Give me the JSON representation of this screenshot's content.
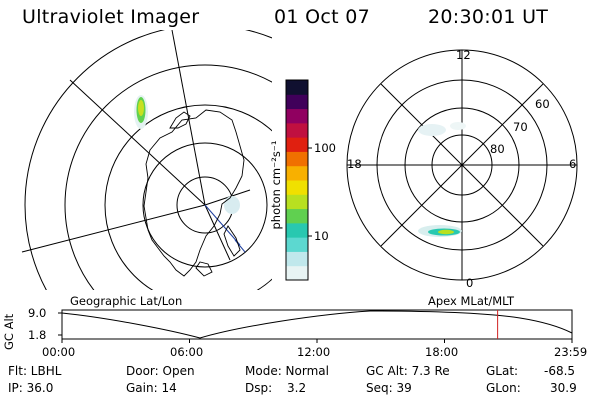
{
  "header": {
    "title": "Ultraviolet Imager",
    "date": "01 Oct 07",
    "time": "20:30:01 UT"
  },
  "colorbar": {
    "unit_label": "photon cm⁻²s⁻¹",
    "tick_labels": [
      "100",
      "10"
    ],
    "colors": [
      "#e8f4f4",
      "#c0e8ec",
      "#5cd8d0",
      "#28c8b0",
      "#60d050",
      "#b8e020",
      "#f0e000",
      "#f8b000",
      "#f07000",
      "#e02010",
      "#c01040",
      "#900060",
      "#40005a",
      "#101030"
    ]
  },
  "polar_labels": {
    "mlt": [
      "12",
      "18",
      "6",
      "0"
    ],
    "mlat": [
      "60",
      "70",
      "80"
    ]
  },
  "altitude_panel": {
    "left_caption": "Geographic Lat/Lon",
    "right_caption": "Apex MLat/MLT",
    "y_axis_label": "GC Alt",
    "y_ticks": [
      "9.0",
      "1.8"
    ],
    "x_ticks": [
      "00:00",
      "06:00",
      "12:00",
      "18:00",
      "23:59"
    ],
    "current_time_marker_hours": 20.5
  },
  "info": {
    "filter": "Flt: LBHL",
    "ip": "IP: 36.0",
    "door": "Door: Open",
    "gain": "Gain: 14",
    "mode": "Mode: Normal",
    "dsp_label": "Dsp:",
    "dsp_value": "3.2",
    "gc_alt": "GC Alt: 7.3 Re",
    "seq": "Seq: 39",
    "glat_label": "GLat:",
    "glat_value": "-68.5",
    "glon_label": "GLon:",
    "glon_value": "30.9"
  }
}
